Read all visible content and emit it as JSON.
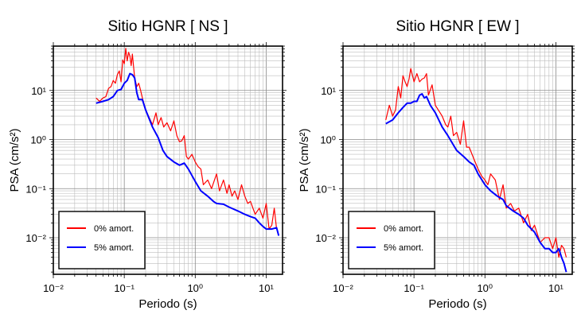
{
  "chart_data": [
    {
      "type": "line",
      "title": "Sitio HGNR [ NS ]",
      "xlabel": "Periodo (s)",
      "ylabel": "PSA (cm/s²)",
      "xscale": "log",
      "yscale": "log",
      "xlim": [
        0.01,
        17
      ],
      "ylim": [
        0.0018,
        80
      ],
      "grid": true,
      "legend": "bottom-left",
      "xticks": [
        "10⁻²",
        "10⁻¹",
        "10⁰",
        "10¹"
      ],
      "yticks": [
        "10⁻²",
        "10⁻¹",
        "10⁰",
        "10¹"
      ],
      "series": [
        {
          "name": "0% amort.",
          "color": "#ff0000",
          "x": [
            0.04,
            0.045,
            0.05,
            0.055,
            0.06,
            0.065,
            0.07,
            0.075,
            0.08,
            0.085,
            0.09,
            0.095,
            0.1,
            0.105,
            0.11,
            0.115,
            0.12,
            0.125,
            0.13,
            0.14,
            0.15,
            0.16,
            0.17,
            0.18,
            0.2,
            0.22,
            0.25,
            0.28,
            0.3,
            0.33,
            0.36,
            0.4,
            0.45,
            0.5,
            0.55,
            0.6,
            0.65,
            0.7,
            0.75,
            0.8,
            0.9,
            1.0,
            1.1,
            1.2,
            1.3,
            1.5,
            1.7,
            2.0,
            2.2,
            2.5,
            2.8,
            3.0,
            3.3,
            3.6,
            4.0,
            4.5,
            5.0,
            5.5,
            6.0,
            7.0,
            8.0,
            9.0,
            10.0,
            11.0,
            12.0,
            13.0,
            14.0
          ],
          "y": [
            7,
            6,
            7,
            7.5,
            11,
            12,
            16,
            14,
            21,
            25,
            15,
            42,
            35,
            72,
            40,
            60,
            50,
            32,
            55,
            18,
            12,
            14,
            10,
            7,
            4,
            3,
            2,
            3.5,
            2,
            2.8,
            1.8,
            2.2,
            1.5,
            2.4,
            1.2,
            0.9,
            0.95,
            1.2,
            0.45,
            0.4,
            0.5,
            0.35,
            0.28,
            0.25,
            0.12,
            0.15,
            0.1,
            0.2,
            0.09,
            0.15,
            0.08,
            0.12,
            0.07,
            0.09,
            0.06,
            0.12,
            0.07,
            0.05,
            0.055,
            0.03,
            0.04,
            0.025,
            0.05,
            0.015,
            0.018,
            0.04,
            0.015
          ]
        },
        {
          "name": "5% amort.",
          "color": "#0000ff",
          "x": [
            0.04,
            0.05,
            0.06,
            0.07,
            0.08,
            0.09,
            0.1,
            0.11,
            0.12,
            0.13,
            0.14,
            0.15,
            0.16,
            0.18,
            0.2,
            0.25,
            0.3,
            0.35,
            0.4,
            0.5,
            0.6,
            0.7,
            0.8,
            1.0,
            1.2,
            1.5,
            1.8,
            2.0,
            2.5,
            3.0,
            4.0,
            5.0,
            6.0,
            7.0,
            8.0,
            9.0,
            10.0,
            12.0,
            14.0,
            15.0
          ],
          "y": [
            5.5,
            6,
            6.5,
            7.5,
            10,
            10.5,
            14,
            16,
            22,
            21,
            18,
            9,
            6.5,
            6.5,
            4,
            1.8,
            1.1,
            0.6,
            0.45,
            0.35,
            0.3,
            0.33,
            0.25,
            0.14,
            0.09,
            0.07,
            0.055,
            0.05,
            0.048,
            0.042,
            0.035,
            0.03,
            0.027,
            0.025,
            0.02,
            0.017,
            0.015,
            0.015,
            0.016,
            0.011
          ]
        }
      ]
    },
    {
      "type": "line",
      "title": "Sitio HGNR [ EW ]",
      "xlabel": "Periodo (s)",
      "ylabel": "PSA (cm/s²)",
      "xscale": "log",
      "yscale": "log",
      "xlim": [
        0.01,
        17
      ],
      "ylim": [
        0.0018,
        80
      ],
      "grid": true,
      "legend": "bottom-left",
      "xticks": [
        "10⁻²",
        "10⁻¹",
        "10⁰",
        "10¹"
      ],
      "yticks": [
        "10⁻²",
        "10⁻¹",
        "10⁰",
        "10¹"
      ],
      "series": [
        {
          "name": "0% amort.",
          "color": "#ff0000",
          "x": [
            0.04,
            0.045,
            0.05,
            0.055,
            0.06,
            0.065,
            0.07,
            0.075,
            0.08,
            0.085,
            0.09,
            0.1,
            0.11,
            0.12,
            0.13,
            0.14,
            0.15,
            0.16,
            0.18,
            0.2,
            0.22,
            0.25,
            0.28,
            0.3,
            0.33,
            0.36,
            0.4,
            0.45,
            0.5,
            0.55,
            0.6,
            0.7,
            0.8,
            0.9,
            1.0,
            1.1,
            1.2,
            1.4,
            1.6,
            1.8,
            2.0,
            2.3,
            2.6,
            3.0,
            3.5,
            4.0,
            4.5,
            5.0,
            6.0,
            7.0,
            8.0,
            9.0,
            10.0,
            11.0,
            12.0,
            13.0,
            14.0
          ],
          "y": [
            2.5,
            5,
            3,
            4,
            12,
            7,
            20,
            15,
            12,
            17,
            28,
            15,
            22,
            15,
            17,
            18,
            22,
            8,
            13,
            5,
            4,
            3,
            2,
            1.8,
            3,
            1.2,
            1.4,
            0.8,
            2.4,
            0.7,
            0.7,
            0.4,
            0.25,
            0.18,
            0.15,
            0.12,
            0.2,
            0.15,
            0.06,
            0.12,
            0.04,
            0.05,
            0.035,
            0.04,
            0.02,
            0.03,
            0.014,
            0.018,
            0.008,
            0.01,
            0.01,
            0.006,
            0.01,
            0.004,
            0.007,
            0.006,
            0.004
          ]
        },
        {
          "name": "5% amort.",
          "color": "#0000ff",
          "x": [
            0.04,
            0.05,
            0.06,
            0.07,
            0.08,
            0.09,
            0.1,
            0.11,
            0.12,
            0.13,
            0.14,
            0.15,
            0.17,
            0.2,
            0.25,
            0.3,
            0.4,
            0.5,
            0.6,
            0.7,
            0.8,
            1.0,
            1.2,
            1.5,
            1.8,
            2.0,
            2.5,
            3.0,
            3.5,
            4.0,
            5.0,
            6.0,
            7.0,
            8.0,
            9.0,
            10.0,
            11.0,
            12.0,
            13.0,
            14.0
          ],
          "y": [
            2.1,
            2.5,
            3.5,
            4.5,
            5.5,
            5.5,
            6,
            6,
            8,
            8.5,
            7,
            7.5,
            5,
            3.5,
            1.8,
            1.2,
            0.6,
            0.45,
            0.35,
            0.3,
            0.2,
            0.12,
            0.09,
            0.07,
            0.06,
            0.045,
            0.035,
            0.03,
            0.025,
            0.018,
            0.013,
            0.008,
            0.006,
            0.006,
            0.005,
            0.005,
            0.006,
            0.004,
            0.003,
            0.002
          ]
        }
      ]
    }
  ]
}
